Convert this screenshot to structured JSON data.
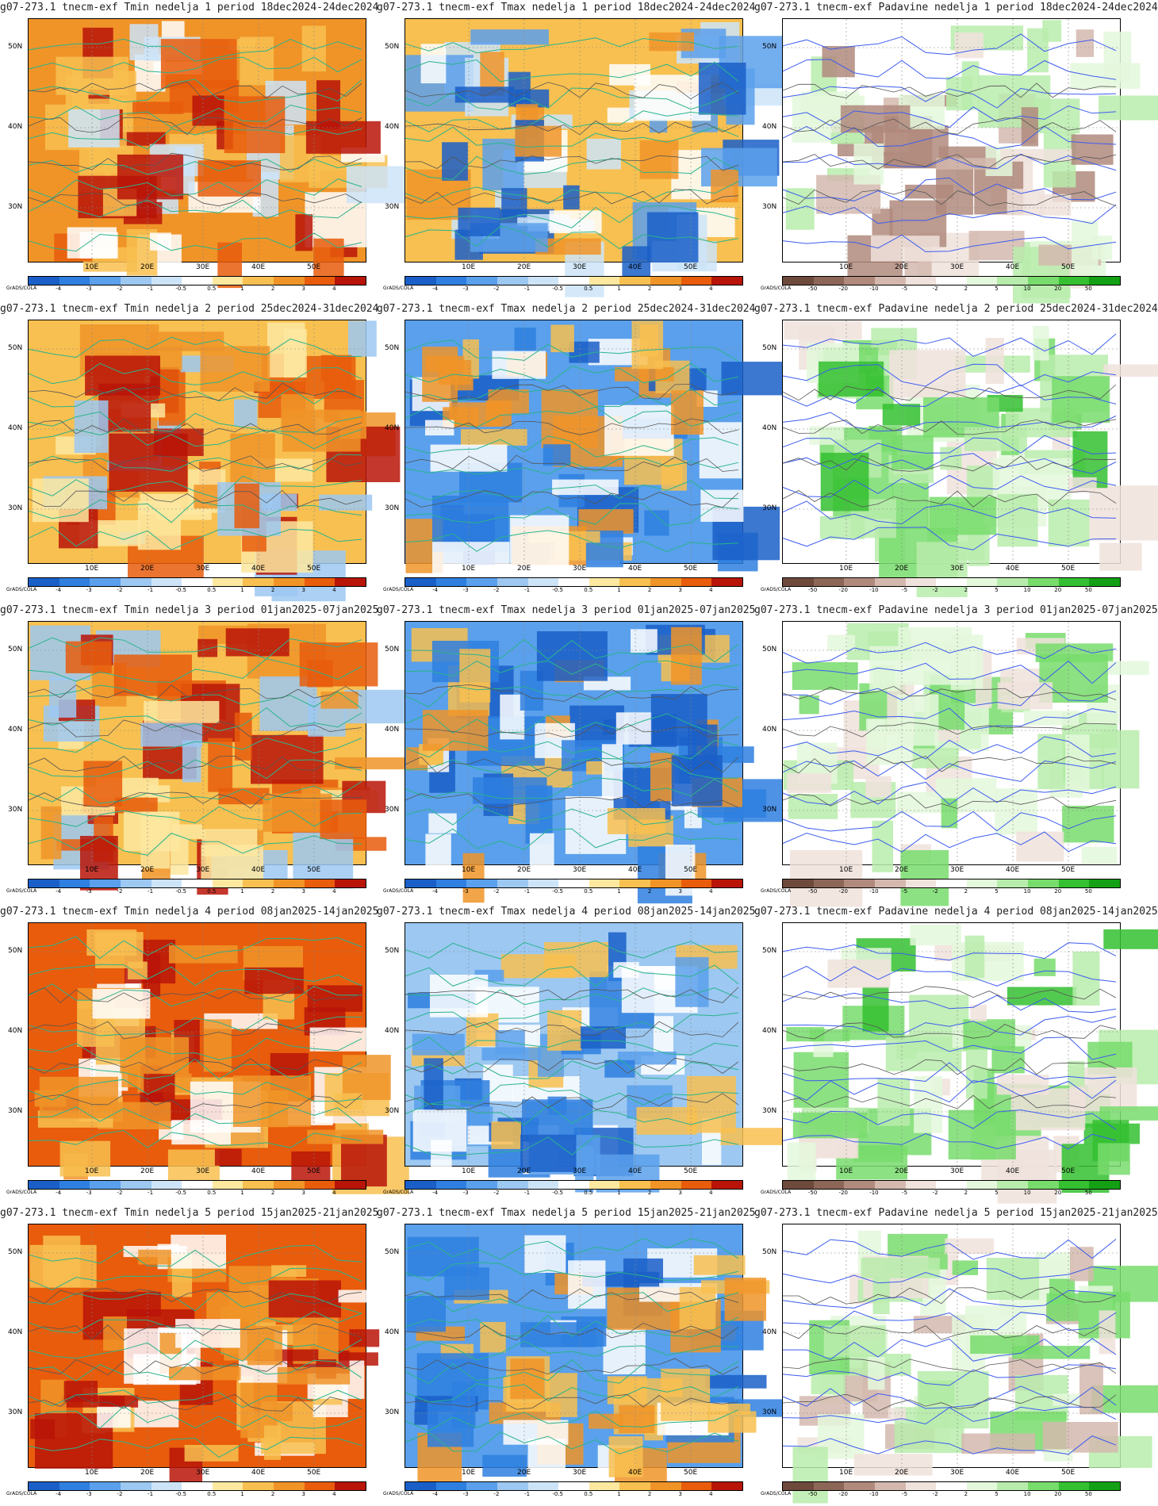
{
  "map": {
    "lat_labels": [
      "50N",
      "40N",
      "30N"
    ],
    "lon_labels": [
      "10E",
      "20E",
      "30E",
      "40E",
      "50E"
    ],
    "credit": "GrADS/COLA"
  },
  "colorbars": {
    "temp": {
      "labels": [
        "-4",
        "-3",
        "-2",
        "-1",
        "-0.5",
        "0.5",
        "1",
        "2",
        "3",
        "4"
      ],
      "colors": [
        "#1a5fc8",
        "#2e7fe0",
        "#5aa0ec",
        "#9cc8f2",
        "#cde4f8",
        "#ffffff",
        "#fde8a0",
        "#f8c050",
        "#f09428",
        "#e85c0c",
        "#b81408"
      ]
    },
    "precip": {
      "labels": [
        "-50",
        "-20",
        "-10",
        "-5",
        "-2",
        "2",
        "5",
        "10",
        "20",
        "50"
      ],
      "colors": [
        "#6e4a3c",
        "#8c6656",
        "#b08a7c",
        "#d4b8ae",
        "#f0e2dc",
        "#ffffff",
        "#e4f8dc",
        "#b8ecac",
        "#78dc6c",
        "#34c030",
        "#14a014"
      ]
    }
  },
  "panels": [
    {
      "id": "tmin-1",
      "kind": "tmin",
      "title": "g07-273.1 tnecm-exf Tmin nedelja 1 period 18dec2024-24dec2024",
      "field": "warm"
    },
    {
      "id": "tmax-1",
      "kind": "tmax",
      "title": "g07-273.1 tnecm-exf Tmax nedelja 1 period 18dec2024-24dec2024",
      "field": "mixed"
    },
    {
      "id": "pad-1",
      "kind": "precip",
      "title": "g07-273.1 tnecm-exf Padavine nedelja 1 period 18dec2024-24dec2024",
      "field": "dry"
    },
    {
      "id": "tmin-2",
      "kind": "tmin",
      "title": "g07-273.1 tnecm-exf Tmin nedelja 2 period 25dec2024-31dec2024",
      "field": "warm-east"
    },
    {
      "id": "tmax-2",
      "kind": "tmax",
      "title": "g07-273.1 tnecm-exf Tmax nedelja 2 period 25dec2024-31dec2024",
      "field": "cold"
    },
    {
      "id": "pad-2",
      "kind": "precip",
      "title": "g07-273.1 tnecm-exf Padavine nedelja 2 period 25dec2024-31dec2024",
      "field": "wet"
    },
    {
      "id": "tmin-3",
      "kind": "tmin",
      "title": "g07-273.1 tnecm-exf Tmin nedelja 3 period 01jan2025-07jan2025",
      "field": "warm-east"
    },
    {
      "id": "tmax-3",
      "kind": "tmax",
      "title": "g07-273.1 tnecm-exf Tmax nedelja 3 period 01jan2025-07jan2025",
      "field": "cold"
    },
    {
      "id": "pad-3",
      "kind": "precip",
      "title": "g07-273.1 tnecm-exf Padavine nedelja 3 period 01jan2025-07jan2025",
      "field": "wet-light"
    },
    {
      "id": "tmin-4",
      "kind": "tmin",
      "title": "g07-273.1 tnecm-exf Tmin nedelja 4 period 08jan2025-14jan2025",
      "field": "hot"
    },
    {
      "id": "tmax-4",
      "kind": "tmax",
      "title": "g07-273.1 tnecm-exf Tmax nedelja 4 period 08jan2025-14jan2025",
      "field": "cold-light"
    },
    {
      "id": "pad-4",
      "kind": "precip",
      "title": "g07-273.1 tnecm-exf Padavine nedelja 4 period 08jan2025-14jan2025",
      "field": "wet"
    },
    {
      "id": "tmin-5",
      "kind": "tmin",
      "title": "g07-273.1 tnecm-exf Tmin nedelja 5 period 15jan2025-21jan2025",
      "field": "hot"
    },
    {
      "id": "tmax-5",
      "kind": "tmax",
      "title": "g07-273.1 tnecm-exf Tmax nedelja 5 period 15jan2025-21jan2025",
      "field": "cold"
    },
    {
      "id": "pad-5",
      "kind": "precip",
      "title": "g07-273.1 tnecm-exf Padavine nedelja 5 period 15jan2025-21jan2025",
      "field": "mixed-precip"
    }
  ]
}
